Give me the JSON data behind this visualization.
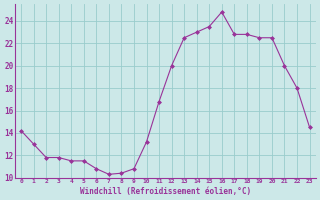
{
  "x": [
    0,
    1,
    2,
    3,
    4,
    5,
    6,
    7,
    8,
    9,
    10,
    11,
    12,
    13,
    14,
    15,
    16,
    17,
    18,
    19,
    20,
    21,
    22,
    23
  ],
  "y": [
    14.2,
    13.0,
    11.8,
    11.8,
    11.5,
    11.5,
    10.8,
    10.3,
    10.4,
    10.8,
    13.2,
    16.8,
    20.0,
    22.5,
    23.0,
    23.5,
    24.8,
    22.8,
    22.8,
    22.5,
    22.5,
    20.0,
    18.0,
    14.5
  ],
  "ylim": [
    10,
    25
  ],
  "yticks": [
    10,
    12,
    14,
    16,
    18,
    20,
    22,
    24
  ],
  "line_color": "#993399",
  "marker": "D",
  "marker_size": 2.0,
  "bg_color": "#cce8e8",
  "grid_color": "#99cccc",
  "xlabel": "Windchill (Refroidissement éolien,°C)",
  "xlabel_color": "#993399",
  "tick_color": "#993399",
  "axis_color": "#993399"
}
